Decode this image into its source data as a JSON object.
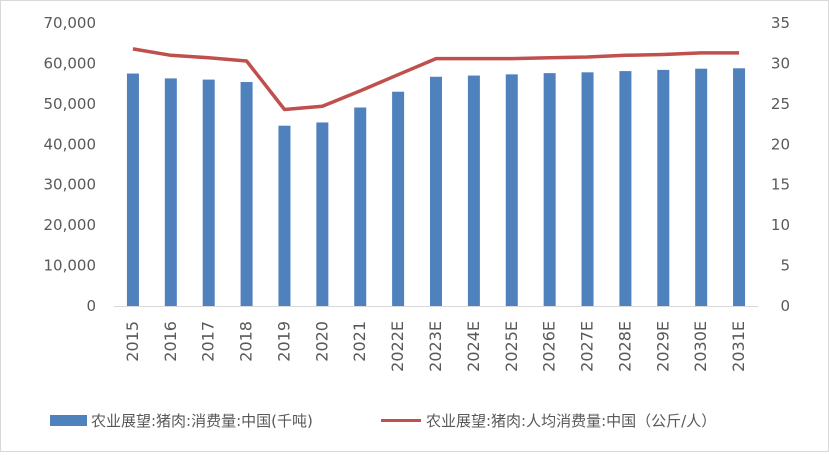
{
  "chart_data": {
    "type": "bar+line",
    "categories": [
      "2015",
      "2016",
      "2017",
      "2018",
      "2019",
      "2020",
      "2021",
      "2022E",
      "2023E",
      "2024E",
      "2025E",
      "2026E",
      "2027E",
      "2028E",
      "2029E",
      "2030E",
      "2031E"
    ],
    "series": [
      {
        "name": "农业展望:猪肉:消费量:中国(千吨)",
        "type": "bar",
        "axis": "left",
        "color": "#4f81bd",
        "values": [
          57500,
          56300,
          56000,
          55400,
          44600,
          45400,
          49100,
          53000,
          56700,
          57000,
          57300,
          57600,
          57800,
          58100,
          58400,
          58700,
          58800
        ]
      },
      {
        "name": "农业展望:猪肉:人均消费量:中国（公斤/人）",
        "type": "line",
        "axis": "right",
        "color": "#c0504d",
        "values": [
          31.8,
          31.0,
          30.7,
          30.3,
          24.3,
          24.7,
          26.6,
          28.6,
          30.6,
          30.6,
          30.6,
          30.7,
          30.8,
          31.0,
          31.1,
          31.3,
          31.3
        ]
      }
    ],
    "y_left": {
      "min": 0,
      "max": 70000,
      "step": 10000,
      "tick_labels": [
        "0",
        "10,000",
        "20,000",
        "30,000",
        "40,000",
        "50,000",
        "60,000",
        "70,000"
      ]
    },
    "y_right": {
      "min": 0,
      "max": 35,
      "step": 5,
      "tick_labels": [
        "0",
        "5",
        "10",
        "15",
        "20",
        "25",
        "30",
        "35"
      ]
    },
    "grid": false,
    "legend_position": "bottom"
  }
}
